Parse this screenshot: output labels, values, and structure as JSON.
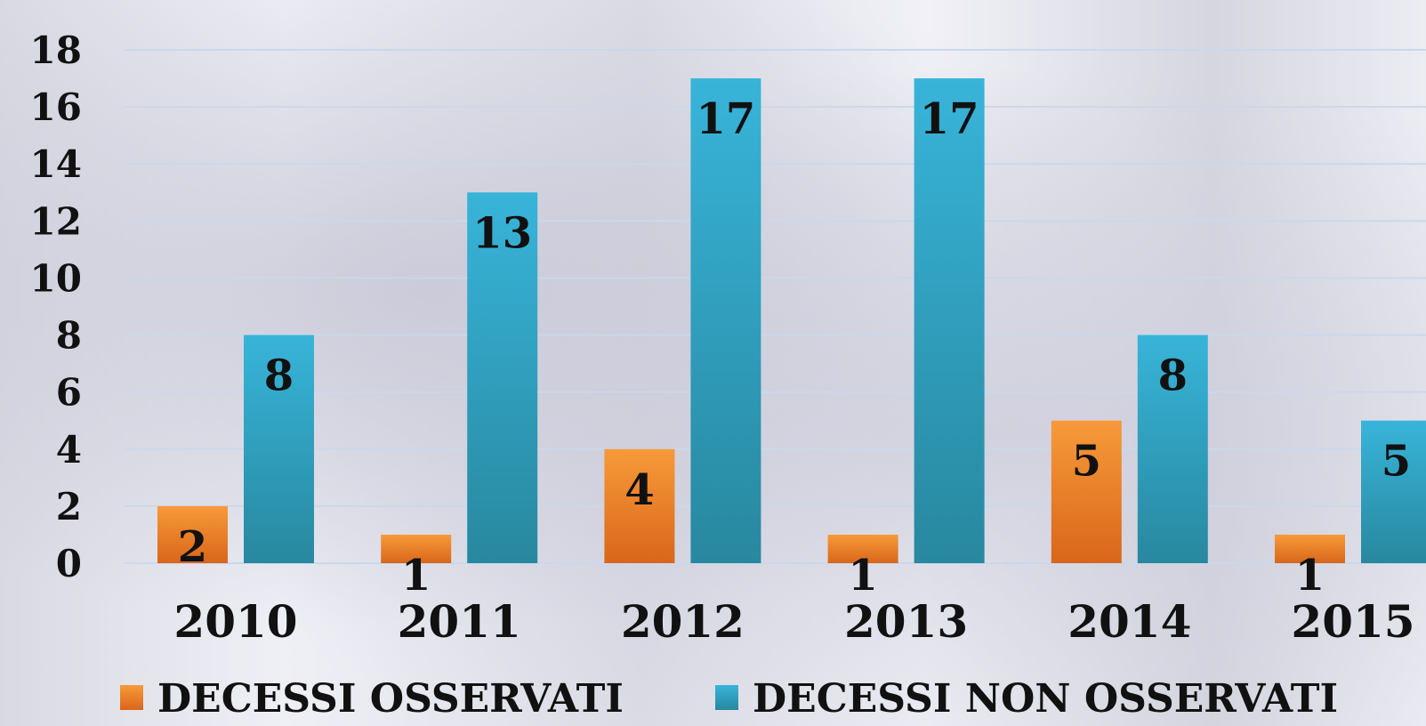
{
  "chart_data": {
    "type": "bar",
    "categories": [
      "2010",
      "2011",
      "2012",
      "2013",
      "2014",
      "2015"
    ],
    "series": [
      {
        "name": "DECESSI OSSERVATI",
        "values": [
          2,
          1,
          4,
          1,
          5,
          1
        ],
        "color": "#E87722"
      },
      {
        "name": "DECESSI NON OSSERVATI",
        "values": [
          8,
          13,
          17,
          17,
          8,
          5
        ],
        "color": "#2FA3C7"
      }
    ],
    "yticks": [
      "0",
      "2",
      "4",
      "6",
      "8",
      "10",
      "12",
      "14",
      "16",
      "18"
    ],
    "ylim": [
      0,
      18
    ],
    "grid": true,
    "legend_position": "bottom"
  }
}
